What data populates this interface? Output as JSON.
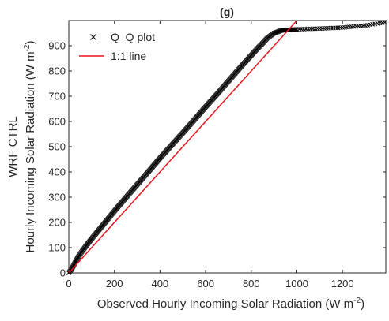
{
  "chart_data": {
    "type": "scatter",
    "title": "(g)",
    "xlabel": "Observed Hourly Incoming Solar Radiation (W m",
    "xlabel_sup": "-2",
    "xlabel_end": ")",
    "ylabel_line1": "WRF CTRL",
    "ylabel_line2": "Hourly Incoming Solar Radiation (W m",
    "ylabel_sup": "-2",
    "ylabel_end": ")",
    "xlim": [
      0,
      1390
    ],
    "ylim": [
      0,
      1000
    ],
    "xticks": [
      0,
      200,
      400,
      600,
      800,
      1000,
      1200
    ],
    "yticks": [
      0,
      100,
      200,
      300,
      400,
      500,
      600,
      700,
      800,
      900
    ],
    "grid": false,
    "legend_position": "top-left",
    "series": [
      {
        "name": "Q_Q plot",
        "marker": "x",
        "color": "#000000",
        "x": [
          0,
          10,
          20,
          30,
          40,
          60,
          80,
          100,
          150,
          200,
          250,
          300,
          350,
          400,
          450,
          500,
          550,
          600,
          650,
          700,
          750,
          800,
          830,
          850,
          870,
          900,
          930,
          960,
          1000,
          1100,
          1200,
          1300,
          1385
        ],
        "y": [
          0,
          12,
          28,
          45,
          62,
          88,
          112,
          135,
          190,
          245,
          298,
          350,
          402,
          455,
          505,
          555,
          606,
          658,
          708,
          760,
          812,
          862,
          892,
          910,
          930,
          950,
          960,
          963,
          965,
          968,
          972,
          980,
          993
        ]
      },
      {
        "name": "1:1 line",
        "color": "#e8141c",
        "x": [
          0,
          1000
        ],
        "y": [
          0,
          1000
        ]
      }
    ]
  }
}
